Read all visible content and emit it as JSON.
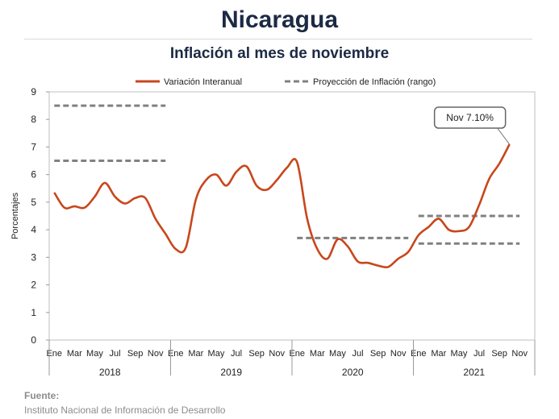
{
  "header": {
    "title": "Nicaragua",
    "subtitle": "Inflación al mes de noviembre"
  },
  "source": {
    "label": "Fuente:",
    "text": "Instituto Nacional de Información de  Desarrollo"
  },
  "chart_data": {
    "type": "line",
    "ylabel": "Porcentajes",
    "ylim": [
      0,
      9
    ],
    "yticks": [
      0,
      1,
      2,
      3,
      4,
      5,
      6,
      7,
      8,
      9
    ],
    "grid": false,
    "legend_position": "top",
    "month_labels": [
      "Ene",
      "Mar",
      "May",
      "Jul",
      "Sep",
      "Nov"
    ],
    "years": [
      "2018",
      "2019",
      "2020",
      "2021"
    ],
    "series": [
      {
        "name": "Variación Interanual",
        "color": "#c8471c",
        "values": [
          5.35,
          4.8,
          4.85,
          4.8,
          5.2,
          5.7,
          5.2,
          4.95,
          5.15,
          5.15,
          4.4,
          3.85,
          3.3,
          3.35,
          5.1,
          5.8,
          6.0,
          5.6,
          6.1,
          6.3,
          5.6,
          5.45,
          5.8,
          6.25,
          6.45,
          4.4,
          3.3,
          2.95,
          3.65,
          3.4,
          2.85,
          2.8,
          2.7,
          2.65,
          2.95,
          3.2,
          3.8,
          4.1,
          4.4,
          4.0,
          3.95,
          4.1,
          4.9,
          5.85,
          6.4,
          7.1
        ]
      },
      {
        "name": "Proyección de Inflación (rango)",
        "color": "#808080",
        "dashed": true,
        "segments": [
          {
            "from": 0,
            "to": 11,
            "value": 8.5
          },
          {
            "from": 0,
            "to": 11,
            "value": 6.5
          },
          {
            "from": 24,
            "to": 35,
            "value": 3.7
          },
          {
            "from": 36,
            "to": 46,
            "value": 4.5
          },
          {
            "from": 36,
            "to": 46,
            "value": 3.5
          }
        ]
      }
    ],
    "annotation": {
      "text": "Nov 7.10%",
      "index": 45
    }
  }
}
